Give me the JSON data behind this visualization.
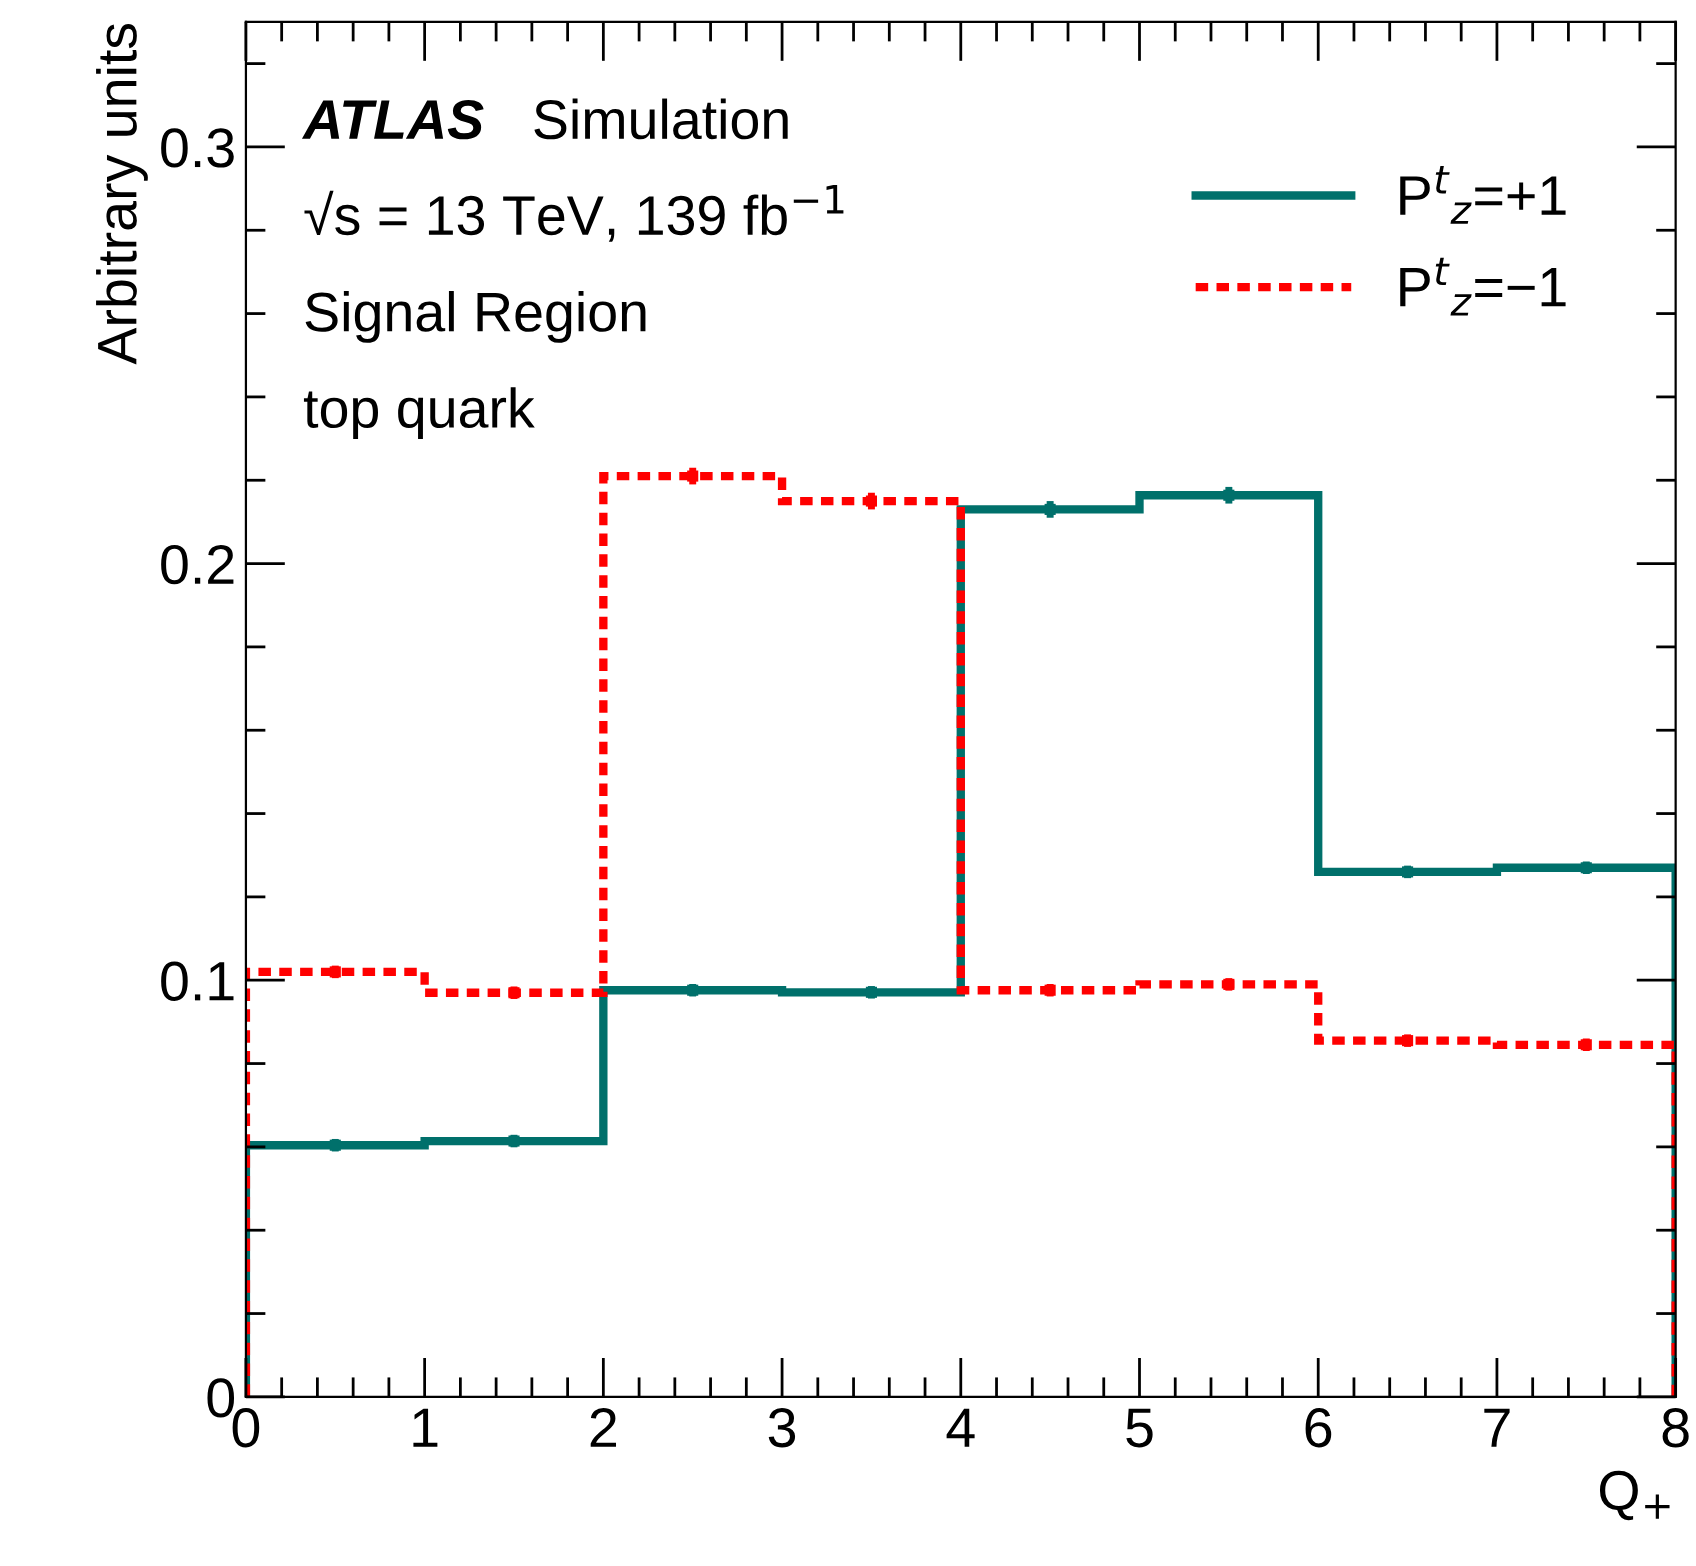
{
  "chart_data": {
    "type": "histogram",
    "xlabel": "Q$_{+}$",
    "ylabel": "Arbitrary units",
    "bins": [
      0,
      1,
      2,
      3,
      4,
      5,
      6,
      7,
      8
    ],
    "series": [
      {
        "name": "P$^{t}$$_{z}$=+1",
        "color": "#00706b",
        "line_style": "solid",
        "values": [
          0.0604,
          0.0614,
          0.0976,
          0.0971,
          0.213,
          0.2164,
          0.126,
          0.127
        ]
      },
      {
        "name": "P$^{t}$$_{z}$=−1",
        "color": "#ff0000",
        "line_style": "dotted",
        "values": [
          0.102,
          0.097,
          0.221,
          0.215,
          0.0976,
          0.099,
          0.0855,
          0.0845
        ]
      },
      {
        "type": "scatter",
        "marker": "square",
        "color": "#00706b",
        "x": [
          0.5,
          1.5,
          2.5,
          3.5,
          4.5,
          5.5,
          6.5,
          7.5
        ],
        "values": [
          0.0604,
          0.0614,
          0.0976,
          0.0971,
          0.213,
          0.2164,
          0.126,
          0.127
        ],
        "errors": [
          0.0015,
          0.0015,
          0.0015,
          0.0015,
          0.002,
          0.002,
          0.0015,
          0.0015
        ]
      },
      {
        "type": "scatter",
        "marker": "square",
        "color": "#ff0000",
        "x": [
          0.5,
          1.5,
          2.5,
          3.5,
          4.5,
          5.5,
          6.5,
          7.5
        ],
        "values": [
          0.102,
          0.097,
          0.221,
          0.215,
          0.0976,
          0.099,
          0.0855,
          0.0845
        ],
        "errors": [
          0.0015,
          0.0015,
          0.002,
          0.002,
          0.0015,
          0.0015,
          0.0015,
          0.0015
        ]
      }
    ],
    "annotations": [
      "ATLAS",
      "Simulation",
      "√s = 13 TeV, 139 fb$^{−1}$",
      "Signal Region",
      "top quark"
    ],
    "xlim": [
      0,
      8
    ],
    "xticks": [
      0,
      1,
      2,
      3,
      4,
      5,
      6,
      7,
      8
    ],
    "ylim": [
      0,
      0.33
    ],
    "yticks": [
      0,
      0.1,
      0.2,
      0.3
    ],
    "legend": "top right",
    "grid": false
  }
}
